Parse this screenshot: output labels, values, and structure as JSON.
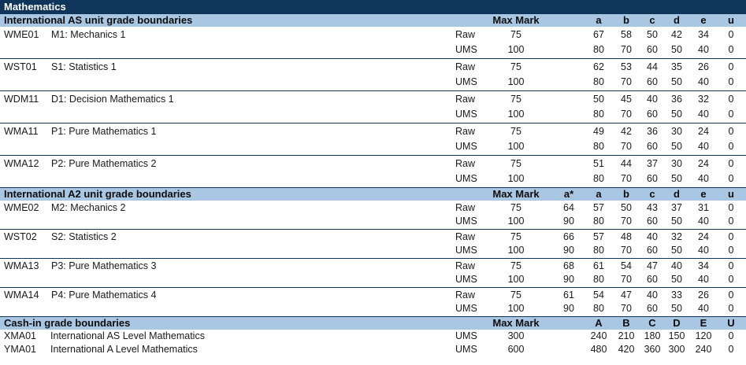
{
  "title": "Mathematics",
  "as": {
    "heading": "International AS unit grade boundaries",
    "cols": {
      "max": "Max Mark",
      "a": "a",
      "b": "b",
      "c": "c",
      "d": "d",
      "e": "e",
      "u": "u"
    },
    "units": [
      {
        "code": "WME01",
        "name": "M1: Mechanics 1",
        "raw": {
          "max": "75",
          "a": "67",
          "b": "58",
          "c": "50",
          "d": "42",
          "e": "34",
          "u": "0"
        },
        "ums": {
          "max": "100",
          "a": "80",
          "b": "70",
          "c": "60",
          "d": "50",
          "e": "40",
          "u": "0"
        }
      },
      {
        "code": "WST01",
        "name": "S1: Statistics 1",
        "raw": {
          "max": "75",
          "a": "62",
          "b": "53",
          "c": "44",
          "d": "35",
          "e": "26",
          "u": "0"
        },
        "ums": {
          "max": "100",
          "a": "80",
          "b": "70",
          "c": "60",
          "d": "50",
          "e": "40",
          "u": "0"
        }
      },
      {
        "code": "WDM11",
        "name": "D1: Decision Mathematics 1",
        "raw": {
          "max": "75",
          "a": "50",
          "b": "45",
          "c": "40",
          "d": "36",
          "e": "32",
          "u": "0"
        },
        "ums": {
          "max": "100",
          "a": "80",
          "b": "70",
          "c": "60",
          "d": "50",
          "e": "40",
          "u": "0"
        }
      },
      {
        "code": "WMA11",
        "name": "P1: Pure Mathematics 1",
        "raw": {
          "max": "75",
          "a": "49",
          "b": "42",
          "c": "36",
          "d": "30",
          "e": "24",
          "u": "0"
        },
        "ums": {
          "max": "100",
          "a": "80",
          "b": "70",
          "c": "60",
          "d": "50",
          "e": "40",
          "u": "0"
        }
      },
      {
        "code": "WMA12",
        "name": "P2: Pure Mathematics 2",
        "raw": {
          "max": "75",
          "a": "51",
          "b": "44",
          "c": "37",
          "d": "30",
          "e": "24",
          "u": "0"
        },
        "ums": {
          "max": "100",
          "a": "80",
          "b": "70",
          "c": "60",
          "d": "50",
          "e": "40",
          "u": "0"
        }
      }
    ]
  },
  "a2": {
    "heading": "International A2 unit grade boundaries",
    "cols": {
      "max": "Max Mark",
      "astar": "a*",
      "a": "a",
      "b": "b",
      "c": "c",
      "d": "d",
      "e": "e",
      "u": "u"
    },
    "units": [
      {
        "code": "WME02",
        "name": "M2: Mechanics 2",
        "raw": {
          "max": "75",
          "astar": "64",
          "a": "57",
          "b": "50",
          "c": "43",
          "d": "37",
          "e": "31",
          "u": "0"
        },
        "ums": {
          "max": "100",
          "astar": "90",
          "a": "80",
          "b": "70",
          "c": "60",
          "d": "50",
          "e": "40",
          "u": "0"
        }
      },
      {
        "code": "WST02",
        "name": "S2: Statistics 2",
        "raw": {
          "max": "75",
          "astar": "66",
          "a": "57",
          "b": "48",
          "c": "40",
          "d": "32",
          "e": "24",
          "u": "0"
        },
        "ums": {
          "max": "100",
          "astar": "90",
          "a": "80",
          "b": "70",
          "c": "60",
          "d": "50",
          "e": "40",
          "u": "0"
        }
      },
      {
        "code": "WMA13",
        "name": "P3: Pure Mathematics 3",
        "raw": {
          "max": "75",
          "astar": "68",
          "a": "61",
          "b": "54",
          "c": "47",
          "d": "40",
          "e": "34",
          "u": "0"
        },
        "ums": {
          "max": "100",
          "astar": "90",
          "a": "80",
          "b": "70",
          "c": "60",
          "d": "50",
          "e": "40",
          "u": "0"
        }
      },
      {
        "code": "WMA14",
        "name": "P4: Pure Mathematics 4",
        "raw": {
          "max": "75",
          "astar": "61",
          "a": "54",
          "b": "47",
          "c": "40",
          "d": "33",
          "e": "26",
          "u": "0"
        },
        "ums": {
          "max": "100",
          "astar": "90",
          "a": "80",
          "b": "70",
          "c": "60",
          "d": "50",
          "e": "40",
          "u": "0"
        }
      }
    ]
  },
  "cashin": {
    "heading": "Cash-in grade boundaries",
    "cols": {
      "max": "Max Mark",
      "a": "A",
      "b": "B",
      "c": "C",
      "d": "D",
      "e": "E",
      "u": "U"
    },
    "rows": [
      {
        "code": "XMA01",
        "name": "International AS Level Mathematics",
        "kind": "UMS",
        "max": "300",
        "a": "240",
        "b": "210",
        "c": "180",
        "d": "150",
        "e": "120",
        "u": "0"
      },
      {
        "code": "YMA01",
        "name": "International A Level Mathematics",
        "kind": "UMS",
        "max": "600",
        "a": "480",
        "b": "420",
        "c": "360",
        "d": "300",
        "e": "240",
        "u": "0"
      }
    ]
  },
  "labels": {
    "raw": "Raw",
    "ums": "UMS"
  }
}
